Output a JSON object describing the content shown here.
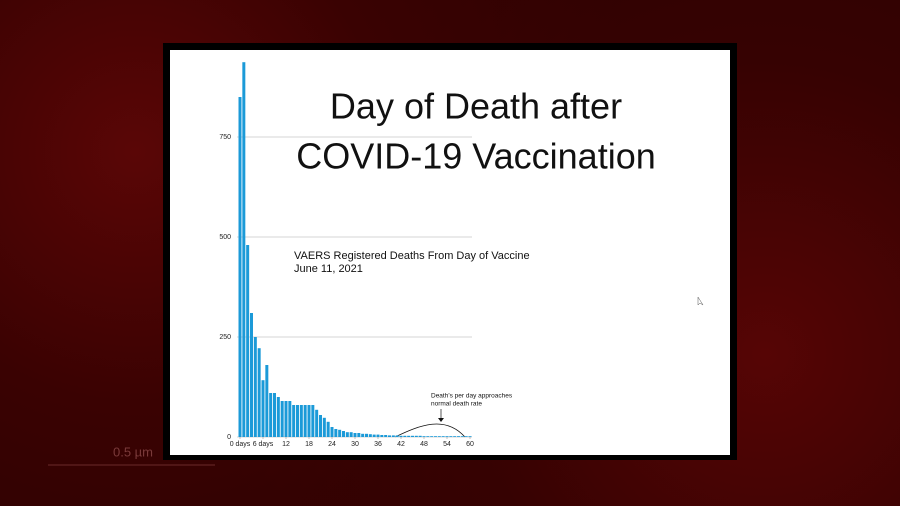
{
  "slide": {
    "title_lines": [
      "Day of Death after",
      "COVID-19 Vaccination"
    ],
    "scale_label": "0.5 µm"
  },
  "chart_data": {
    "type": "bar",
    "title": "VAERS Registered Deaths From Day of Vaccine",
    "subtitle": "June 11, 2021",
    "annotation": [
      "Death's per day approaches",
      "normal death rate"
    ],
    "x": [
      0,
      1,
      2,
      3,
      4,
      5,
      6,
      7,
      8,
      9,
      10,
      11,
      12,
      13,
      14,
      15,
      16,
      17,
      18,
      19,
      20,
      21,
      22,
      23,
      24,
      25,
      26,
      27,
      28,
      29,
      30,
      31,
      32,
      33,
      34,
      35,
      36,
      37,
      38,
      39,
      40,
      41,
      42,
      43,
      44,
      45,
      46,
      47,
      48,
      49,
      50,
      51,
      52,
      53,
      54,
      55,
      56,
      57,
      58,
      59,
      60
    ],
    "values": [
      850,
      937,
      480,
      310,
      250,
      222,
      142,
      180,
      110,
      110,
      100,
      90,
      90,
      90,
      80,
      80,
      80,
      80,
      80,
      80,
      68,
      55,
      48,
      38,
      25,
      20,
      18,
      15,
      12,
      12,
      10,
      10,
      8,
      8,
      7,
      6,
      6,
      5,
      5,
      4,
      4,
      4,
      3,
      3,
      3,
      3,
      3,
      3,
      2,
      2,
      2,
      2,
      2,
      2,
      2,
      2,
      2,
      2,
      2,
      2,
      2
    ],
    "color": "#1b9ad8",
    "xlim": [
      0,
      60
    ],
    "xticks": [
      {
        "value": 0,
        "label": "0 days"
      },
      {
        "value": 6,
        "label": "6 days"
      },
      12,
      18,
      24,
      30,
      36,
      42,
      48,
      54,
      60
    ],
    "ylim": [
      0,
      950
    ],
    "yticks": [
      0,
      250,
      500,
      750
    ],
    "grid": true
  }
}
